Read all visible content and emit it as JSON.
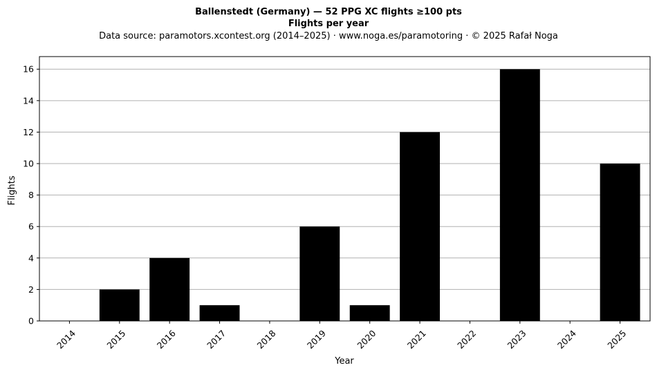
{
  "chart_data": {
    "type": "bar",
    "title": "Ballenstedt (Germany)  —  52 PPG XC flights ≥100 pts",
    "subtitle": "Flights per year",
    "source": "Data source: paramotors.xcontest.org (2014–2025)  ·  www.noga.es/paramotoring  ·  © 2025 Rafał Noga",
    "xlabel": "Year",
    "ylabel": "Flights",
    "categories": [
      "2014",
      "2015",
      "2016",
      "2017",
      "2018",
      "2019",
      "2020",
      "2021",
      "2022",
      "2023",
      "2024",
      "2025"
    ],
    "values": [
      0,
      2,
      4,
      1,
      0,
      6,
      1,
      12,
      0,
      16,
      0,
      10
    ],
    "ylim": [
      0,
      16.8
    ],
    "yticks": [
      0,
      2,
      4,
      6,
      8,
      10,
      12,
      14,
      16
    ],
    "grid": "y",
    "bar_color": "#000000",
    "grid_color": "#b0b0b0"
  }
}
